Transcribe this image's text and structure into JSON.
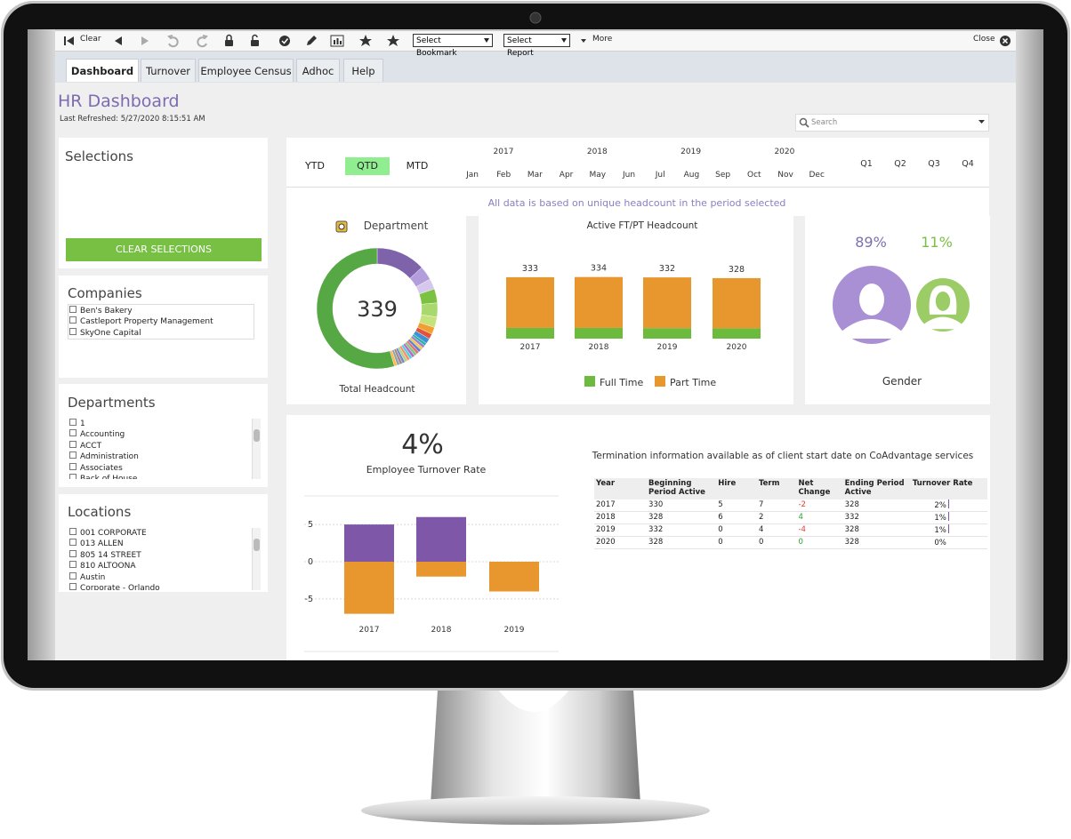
{
  "toolbar": {
    "clear": "Clear",
    "bookmark": "Select Bookmark",
    "report": "Select Report",
    "more": "More",
    "close": "Close"
  },
  "tabs": [
    "Dashboard",
    "Turnover",
    "Employee Census",
    "Adhoc",
    "Help"
  ],
  "header": {
    "title": "HR Dashboard",
    "refreshed": "Last Refreshed: 5/27/2020 8:15:51 AM",
    "search": "Search"
  },
  "selections": {
    "title": "Selections",
    "button": "CLEAR SELECTIONS"
  },
  "companies": {
    "title": "Companies",
    "items": [
      "Ben's Bakery",
      "Castleport Property Management",
      "SkyOne Capital"
    ]
  },
  "departments": {
    "title": "Departments",
    "items": [
      "1",
      "Accounting",
      "ACCT",
      "Administration",
      "Associates",
      "Back of House"
    ]
  },
  "locations": {
    "title": "Locations",
    "items": [
      "001 CORPORATE",
      "013 ALLEN",
      "805 14 STREET",
      "810 ALTOONA",
      "Austin",
      "Corporate - Orlando"
    ]
  },
  "period": {
    "modes": [
      "YTD",
      "QTD",
      "MTD"
    ],
    "selected_mode": 1,
    "years": [
      "2017",
      "2018",
      "2019",
      "2020"
    ],
    "months": [
      "Jan",
      "Feb",
      "Mar",
      "Apr",
      "May",
      "Jun",
      "Jul",
      "Aug",
      "Sep",
      "Oct",
      "Nov",
      "Dec"
    ],
    "quarters": [
      "Q1",
      "Q2",
      "Q3",
      "Q4"
    ]
  },
  "note": "All data is based on unique headcount in the period selected",
  "department_chart": {
    "type": "donut",
    "title": "Department",
    "center_value": "339",
    "caption": "Total Headcount",
    "values": [
      14,
      4,
      3,
      4,
      4,
      3,
      2,
      1.5,
      1.5,
      0.8,
      0.8,
      0.8,
      0.8,
      0.8,
      0.8,
      0.8,
      0.8,
      0.8,
      0.8,
      0.8,
      0.8,
      0.8,
      0.8,
      58
    ],
    "colors": [
      "#7e62aa",
      "#b39ddb",
      "#d6c8ec",
      "#7cc242",
      "#a8d86e",
      "#c6e27a",
      "#f0a030",
      "#e2533a",
      "#3f8fd8",
      "#2bb3a4",
      "#9d7bd0",
      "#f2c94c",
      "#5b7fd6",
      "#e57373",
      "#81c784",
      "#ba68c8",
      "#4dd0e1",
      "#ff8a65",
      "#aed581",
      "#7986cb",
      "#a1887f",
      "#90a4ae",
      "#ffb74d",
      "#56a845"
    ]
  },
  "headcount_chart": {
    "type": "bar",
    "stacked": true,
    "title": "Active FT/PT Headcount",
    "categories": [
      "2017",
      "2018",
      "2019",
      "2020"
    ],
    "series": [
      {
        "name": "Full Time",
        "color": "#6dbb3e",
        "values": [
          58,
          58,
          57,
          56
        ]
      },
      {
        "name": "Part Time",
        "color": "#e8962e",
        "values": [
          275,
          276,
          275,
          272
        ]
      }
    ],
    "totals": [
      "333",
      "334",
      "332",
      "328"
    ],
    "ylim": [
      0,
      400
    ]
  },
  "gender_chart": {
    "type": "pictogram",
    "title": "Gender",
    "values": [
      89,
      11
    ],
    "value_labels": [
      "89%",
      "11%"
    ],
    "colors": [
      "#a98fd4",
      "#9ccc65"
    ],
    "label_colors": [
      "#7e6fb3",
      "#7cbf45"
    ]
  },
  "turnover_chart": {
    "type": "bar",
    "kpi": "4%",
    "title": "Employee Turnover Rate",
    "categories": [
      "2017",
      "2018",
      "2019"
    ],
    "series": [
      {
        "color": "#7e57a8",
        "values": [
          5,
          6,
          0
        ]
      },
      {
        "color": "#e8962e",
        "values": [
          -7,
          -2,
          -4
        ]
      }
    ],
    "ylim": [
      -8,
      8
    ],
    "yticks": [
      5,
      0,
      -5
    ],
    "grid": true
  },
  "termination": {
    "note": "Termination information available as of client start date on CoAdvantage services",
    "columns": [
      "Year",
      "Beginning Period Active",
      "Hire",
      "Term",
      "Net Change",
      "Ending Period Active",
      "Turnover Rate"
    ],
    "rows": [
      [
        "2017",
        "330",
        "5",
        "7",
        "-2",
        "328"
      ],
      [
        "2018",
        "328",
        "6",
        "2",
        "4",
        "332"
      ],
      [
        "2019",
        "332",
        "0",
        "4",
        "-4",
        "328"
      ],
      [
        "2020",
        "328",
        "0",
        "0",
        "0",
        "328"
      ]
    ],
    "rates": {
      "values": [
        2,
        1,
        1,
        0
      ],
      "value_labels": [
        "2%",
        "1%",
        "1%",
        "0%"
      ],
      "xlim": [
        0,
        100
      ],
      "color": "#7e57a8"
    }
  }
}
